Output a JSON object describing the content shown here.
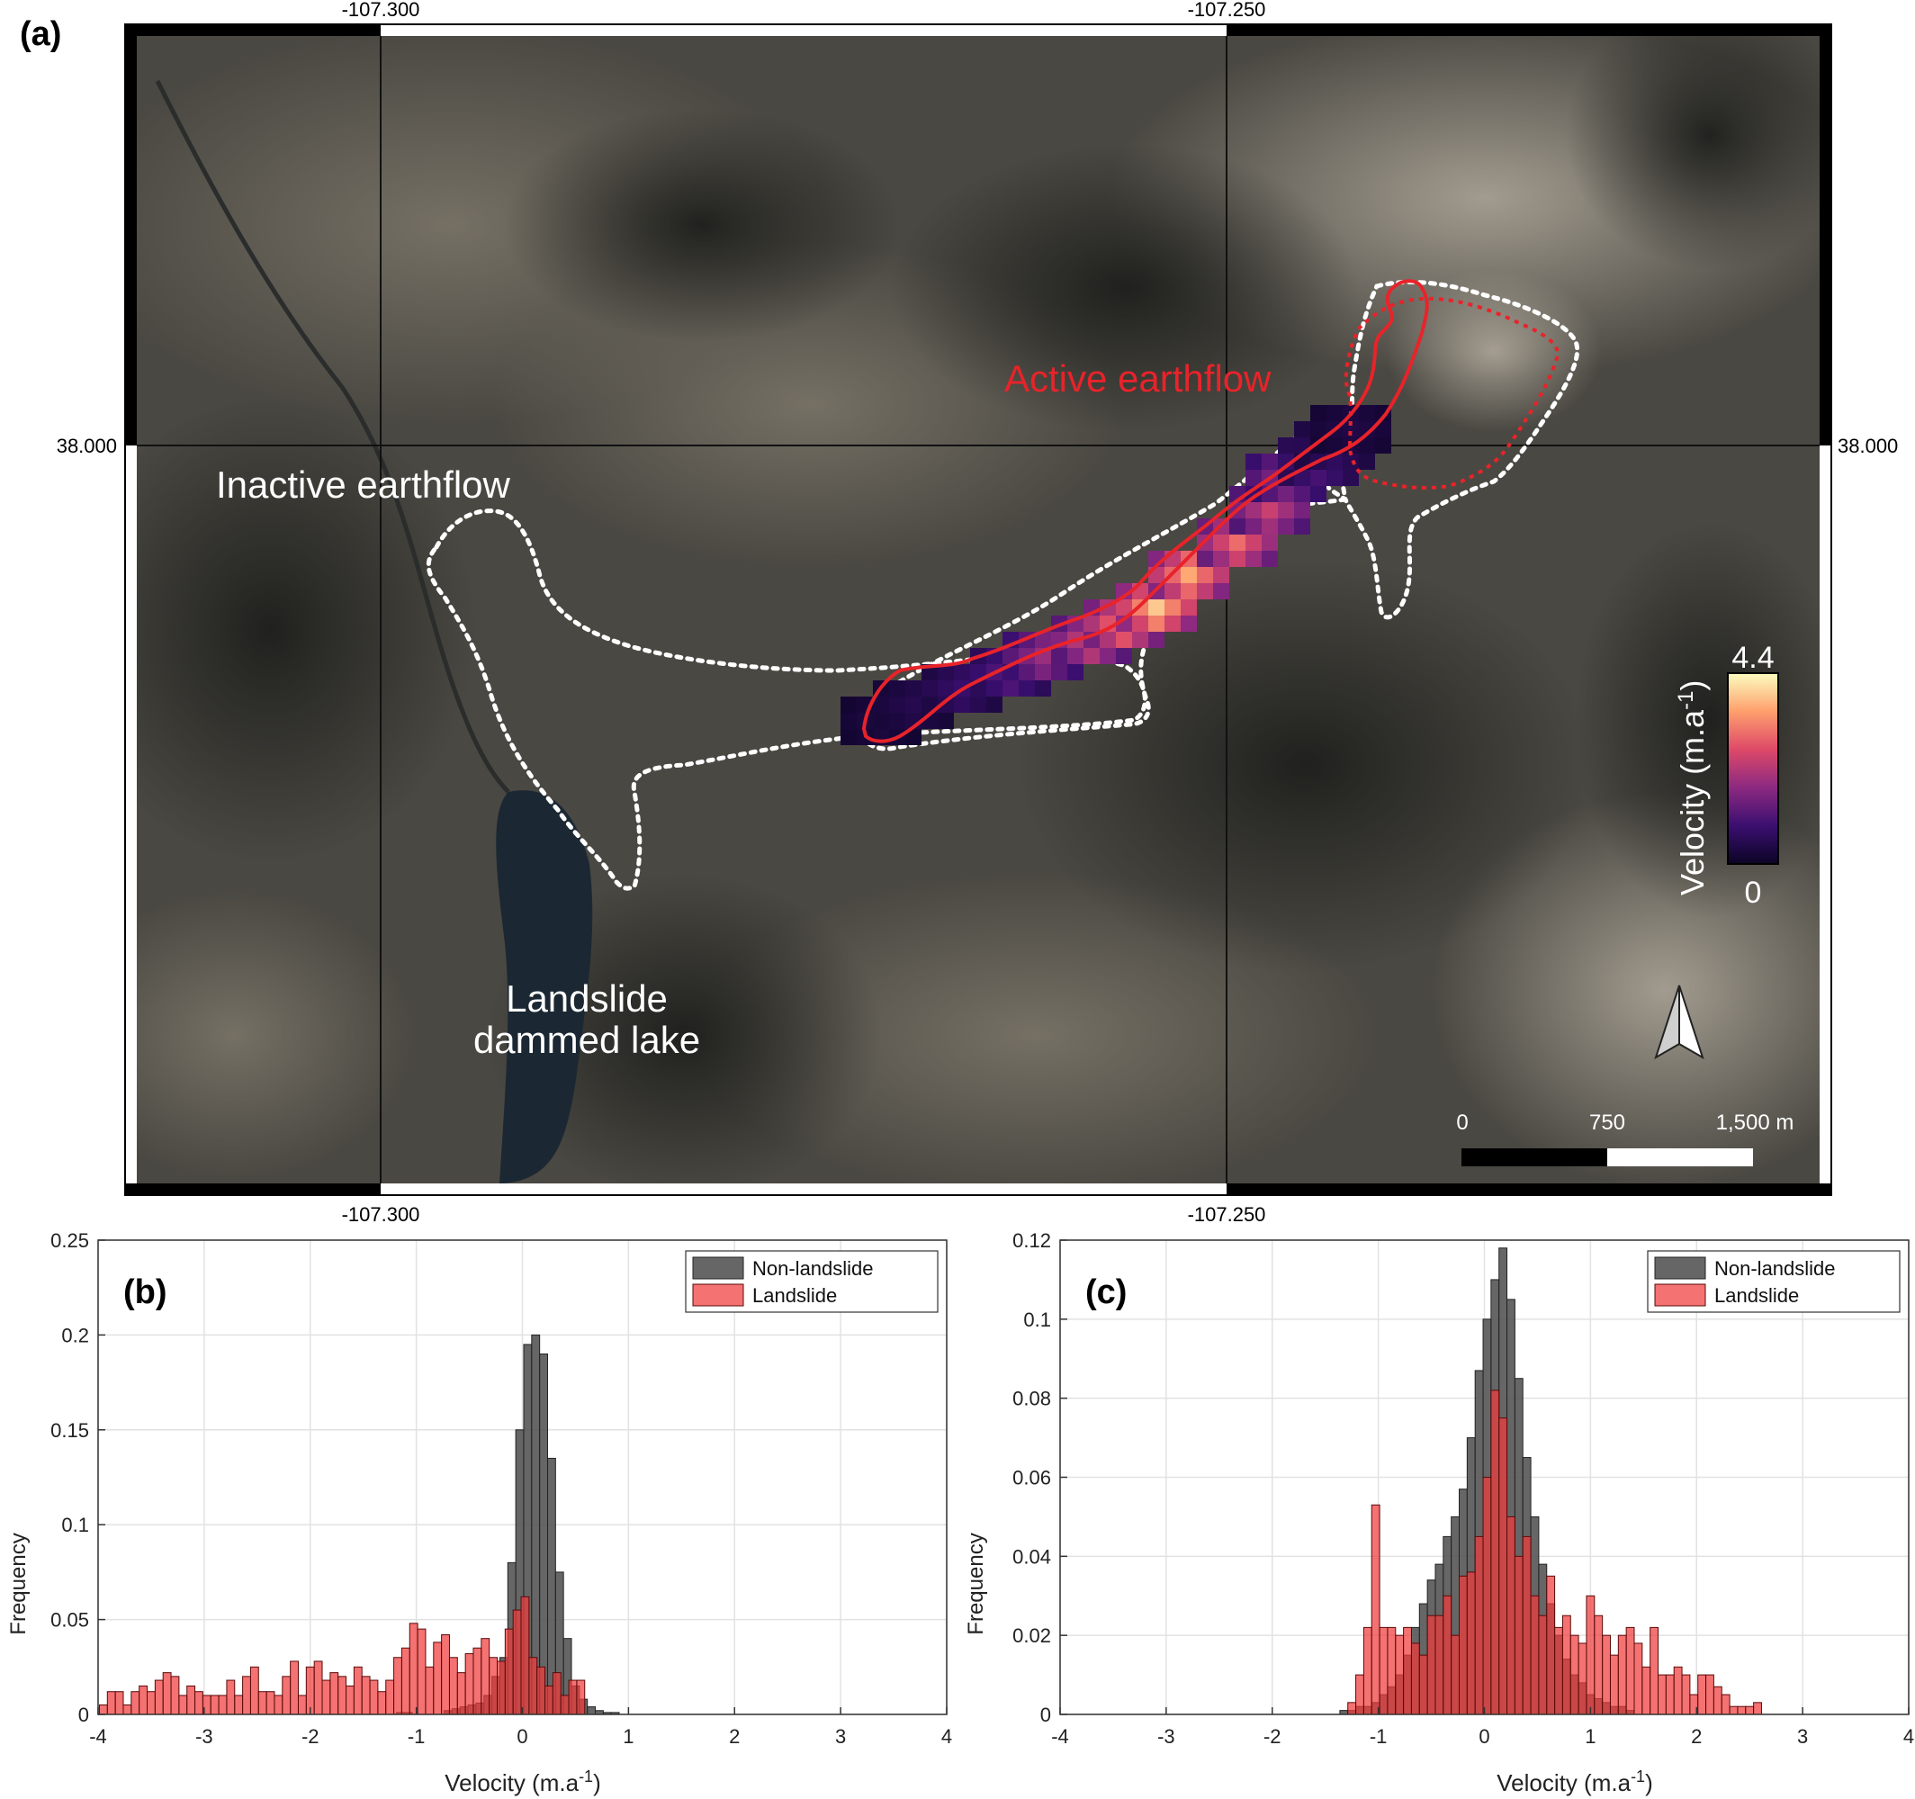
{
  "panel_a": {
    "label": "(a)",
    "lon_ticks": [
      "-107.300",
      "-107.250"
    ],
    "lat_ticks": [
      "38.000"
    ],
    "annotations": {
      "active": "Active earthflow",
      "inactive": "Inactive earthflow",
      "lake_line1": "Landslide",
      "lake_line2": "dammed lake"
    },
    "colorbar": {
      "title": "Velocity (m.a",
      "title_sup": "-1",
      "title_end": ")",
      "max_label": "4.4",
      "min_label": "0",
      "max": 4.4,
      "min": 0
    },
    "scalebar": {
      "labels": [
        "0",
        "750",
        "1,500 m"
      ]
    },
    "colors": {
      "active_outline": "#e8232a",
      "inactive_outline": "#ffffff",
      "annotation_active": "#e8232a",
      "annotation_other": "#ffffff"
    },
    "icons": [
      "north-arrow-icon"
    ]
  },
  "panel_b": {
    "label": "(b)",
    "chart_data": {
      "type": "bar",
      "xlabel": "Velocity (m.a-1)",
      "ylabel": "Frequency",
      "xlim": [
        -4,
        4
      ],
      "ylim": [
        0,
        0.25
      ],
      "xticks": [
        "-4",
        "-3",
        "-2",
        "-1",
        "0",
        "1",
        "2",
        "3",
        "4"
      ],
      "yticks": [
        "0",
        "0.05",
        "0.1",
        "0.15",
        "0.2",
        "0.25"
      ],
      "grid": true,
      "legend_position": "top-right",
      "bin_width": 0.075,
      "series": [
        {
          "name": "Non-landslide",
          "color": "#555555",
          "bins": [
            [
              -1.15,
              0.001
            ],
            [
              -1.075,
              0.001
            ],
            [
              -0.7,
              0.002
            ],
            [
              -0.625,
              0.003
            ],
            [
              -0.55,
              0.004
            ],
            [
              -0.475,
              0.005
            ],
            [
              -0.4,
              0.006
            ],
            [
              -0.325,
              0.01
            ],
            [
              -0.25,
              0.02
            ],
            [
              -0.175,
              0.03
            ],
            [
              -0.1,
              0.08
            ],
            [
              -0.025,
              0.15
            ],
            [
              0.05,
              0.195
            ],
            [
              0.125,
              0.2
            ],
            [
              0.2,
              0.19
            ],
            [
              0.275,
              0.135
            ],
            [
              0.35,
              0.075
            ],
            [
              0.425,
              0.04
            ],
            [
              0.5,
              0.015
            ],
            [
              0.575,
              0.008
            ],
            [
              0.65,
              0.004
            ],
            [
              0.725,
              0.002
            ],
            [
              0.8,
              0.001
            ],
            [
              0.875,
              0.001
            ]
          ]
        },
        {
          "name": "Landslide",
          "color": "#f03c3c",
          "bins": [
            [
              -3.95,
              0.005
            ],
            [
              -3.875,
              0.012
            ],
            [
              -3.8,
              0.012
            ],
            [
              -3.725,
              0.005
            ],
            [
              -3.65,
              0.012
            ],
            [
              -3.575,
              0.015
            ],
            [
              -3.5,
              0.012
            ],
            [
              -3.425,
              0.018
            ],
            [
              -3.35,
              0.022
            ],
            [
              -3.275,
              0.02
            ],
            [
              -3.2,
              0.01
            ],
            [
              -3.125,
              0.015
            ],
            [
              -3.05,
              0.012
            ],
            [
              -2.975,
              0.01
            ],
            [
              -2.9,
              0.01
            ],
            [
              -2.825,
              0.01
            ],
            [
              -2.75,
              0.018
            ],
            [
              -2.675,
              0.01
            ],
            [
              -2.6,
              0.02
            ],
            [
              -2.525,
              0.025
            ],
            [
              -2.45,
              0.012
            ],
            [
              -2.375,
              0.012
            ],
            [
              -2.3,
              0.01
            ],
            [
              -2.225,
              0.02
            ],
            [
              -2.15,
              0.028
            ],
            [
              -2.075,
              0.01
            ],
            [
              -2.0,
              0.025
            ],
            [
              -1.925,
              0.028
            ],
            [
              -1.85,
              0.018
            ],
            [
              -1.775,
              0.022
            ],
            [
              -1.7,
              0.02
            ],
            [
              -1.625,
              0.015
            ],
            [
              -1.55,
              0.025
            ],
            [
              -1.475,
              0.02
            ],
            [
              -1.4,
              0.018
            ],
            [
              -1.325,
              0.012
            ],
            [
              -1.25,
              0.018
            ],
            [
              -1.175,
              0.03
            ],
            [
              -1.1,
              0.035
            ],
            [
              -1.025,
              0.048
            ],
            [
              -0.95,
              0.045
            ],
            [
              -0.875,
              0.025
            ],
            [
              -0.8,
              0.038
            ],
            [
              -0.725,
              0.042
            ],
            [
              -0.65,
              0.03
            ],
            [
              -0.575,
              0.022
            ],
            [
              -0.5,
              0.032
            ],
            [
              -0.425,
              0.035
            ],
            [
              -0.35,
              0.04
            ],
            [
              -0.275,
              0.03
            ],
            [
              -0.2,
              0.028
            ],
            [
              -0.125,
              0.045
            ],
            [
              -0.05,
              0.055
            ],
            [
              0.025,
              0.062
            ],
            [
              0.1,
              0.03
            ],
            [
              0.175,
              0.025
            ],
            [
              0.25,
              0.015
            ],
            [
              0.325,
              0.022
            ],
            [
              0.4,
              0.01
            ],
            [
              0.475,
              0.018
            ],
            [
              0.55,
              0.018
            ]
          ]
        }
      ]
    }
  },
  "panel_c": {
    "label": "(c)",
    "chart_data": {
      "type": "bar",
      "xlabel": "Velocity (m.a-1)",
      "ylabel": "Frequency",
      "xlim": [
        -4,
        4
      ],
      "ylim": [
        0,
        0.12
      ],
      "xticks": [
        "-4",
        "-3",
        "-2",
        "-1",
        "0",
        "1",
        "2",
        "3",
        "4"
      ],
      "yticks": [
        "0",
        "0.02",
        "0.04",
        "0.06",
        "0.08",
        "0.1",
        "0.12"
      ],
      "grid": true,
      "legend_position": "top-right",
      "bin_width": 0.075,
      "series": [
        {
          "name": "Non-landslide",
          "color": "#555555",
          "bins": [
            [
              -1.325,
              0.001
            ],
            [
              -1.25,
              0.001
            ],
            [
              -1.175,
              0.002
            ],
            [
              -1.1,
              0.002
            ],
            [
              -1.025,
              0.003
            ],
            [
              -0.95,
              0.005
            ],
            [
              -0.875,
              0.007
            ],
            [
              -0.8,
              0.01
            ],
            [
              -0.725,
              0.015
            ],
            [
              -0.65,
              0.022
            ],
            [
              -0.575,
              0.028
            ],
            [
              -0.5,
              0.034
            ],
            [
              -0.425,
              0.038
            ],
            [
              -0.35,
              0.045
            ],
            [
              -0.275,
              0.05
            ],
            [
              -0.2,
              0.057
            ],
            [
              -0.125,
              0.07
            ],
            [
              -0.05,
              0.087
            ],
            [
              0.025,
              0.1
            ],
            [
              0.1,
              0.11
            ],
            [
              0.175,
              0.118
            ],
            [
              0.25,
              0.105
            ],
            [
              0.325,
              0.085
            ],
            [
              0.4,
              0.065
            ],
            [
              0.475,
              0.05
            ],
            [
              0.55,
              0.038
            ],
            [
              0.625,
              0.028
            ],
            [
              0.7,
              0.02
            ],
            [
              0.775,
              0.014
            ],
            [
              0.85,
              0.01
            ],
            [
              0.925,
              0.008
            ],
            [
              1.0,
              0.005
            ],
            [
              1.075,
              0.004
            ],
            [
              1.15,
              0.003
            ],
            [
              1.225,
              0.002
            ],
            [
              1.3,
              0.002
            ],
            [
              1.375,
              0.001
            ]
          ]
        },
        {
          "name": "Landslide",
          "color": "#f03c3c",
          "bins": [
            [
              -1.25,
              0.003
            ],
            [
              -1.175,
              0.01
            ],
            [
              -1.1,
              0.022
            ],
            [
              -1.025,
              0.053
            ],
            [
              -0.95,
              0.022
            ],
            [
              -0.875,
              0.022
            ],
            [
              -0.8,
              0.02
            ],
            [
              -0.725,
              0.022
            ],
            [
              -0.65,
              0.018
            ],
            [
              -0.575,
              0.015
            ],
            [
              -0.5,
              0.025
            ],
            [
              -0.425,
              0.025
            ],
            [
              -0.35,
              0.03
            ],
            [
              -0.275,
              0.02
            ],
            [
              -0.2,
              0.035
            ],
            [
              -0.125,
              0.036
            ],
            [
              -0.05,
              0.045
            ],
            [
              0.025,
              0.06
            ],
            [
              0.1,
              0.082
            ],
            [
              0.175,
              0.075
            ],
            [
              0.25,
              0.05
            ],
            [
              0.325,
              0.04
            ],
            [
              0.4,
              0.045
            ],
            [
              0.475,
              0.03
            ],
            [
              0.55,
              0.025
            ],
            [
              0.625,
              0.035
            ],
            [
              0.7,
              0.022
            ],
            [
              0.775,
              0.025
            ],
            [
              0.85,
              0.02
            ],
            [
              0.925,
              0.018
            ],
            [
              1.0,
              0.03
            ],
            [
              1.075,
              0.025
            ],
            [
              1.15,
              0.02
            ],
            [
              1.225,
              0.015
            ],
            [
              1.3,
              0.02
            ],
            [
              1.375,
              0.022
            ],
            [
              1.45,
              0.018
            ],
            [
              1.525,
              0.012
            ],
            [
              1.6,
              0.022
            ],
            [
              1.675,
              0.01
            ],
            [
              1.75,
              0.01
            ],
            [
              1.825,
              0.012
            ],
            [
              1.9,
              0.01
            ],
            [
              1.975,
              0.005
            ],
            [
              2.05,
              0.01
            ],
            [
              2.125,
              0.01
            ],
            [
              2.2,
              0.007
            ],
            [
              2.275,
              0.005
            ],
            [
              2.35,
              0.002
            ],
            [
              2.425,
              0.002
            ],
            [
              2.5,
              0.002
            ],
            [
              2.575,
              0.003
            ]
          ]
        }
      ]
    }
  }
}
